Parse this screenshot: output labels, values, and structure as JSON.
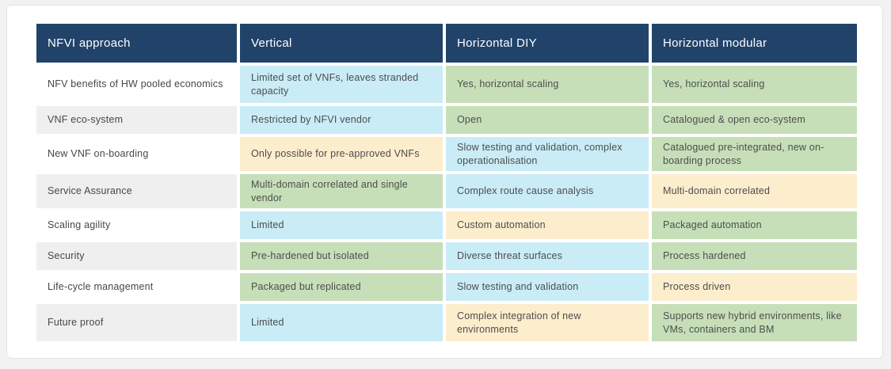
{
  "colors": {
    "page_bg": "#f2f2f2",
    "card_bg": "#ffffff",
    "card_border": "#e3e3e3",
    "header_bg": "#21436a",
    "header_text": "#fdfeff",
    "cell_text": "#4d4d4d",
    "palette": {
      "blue": "#c9ecf7",
      "green": "#c6dfb8",
      "orange": "#fcedcd",
      "gray": "#efefef",
      "white": "#ffffff",
      "navy": "#21436a"
    }
  },
  "table": {
    "headers": [
      "NFVI approach",
      "Vertical",
      "Horizontal DIY",
      "Horizontal modular"
    ],
    "rows": [
      {
        "label": "NFV benefits of HW pooled economics",
        "label_color": "white",
        "cells": [
          {
            "text": "Limited set of VNFs, leaves stranded capacity",
            "color": "blue"
          },
          {
            "text": "Yes, horizontal scaling",
            "color": "green"
          },
          {
            "text": "Yes, horizontal scaling",
            "color": "green"
          }
        ]
      },
      {
        "label": "VNF eco-system",
        "label_color": "gray",
        "cells": [
          {
            "text": "Restricted by NFVI vendor",
            "color": "blue"
          },
          {
            "text": "Open",
            "color": "green"
          },
          {
            "text": "Catalogued & open eco-system",
            "color": "green"
          }
        ]
      },
      {
        "label": "New VNF on-boarding",
        "label_color": "white",
        "cells": [
          {
            "text": "Only possible for pre-approved VNFs",
            "color": "orange"
          },
          {
            "text": "Slow testing and validation, complex operationalisation",
            "color": "blue"
          },
          {
            "text": "Catalogued pre-integrated, new on-boarding process",
            "color": "green"
          }
        ]
      },
      {
        "label": "Service Assurance",
        "label_color": "gray",
        "cells": [
          {
            "text": "Multi-domain correlated and single vendor",
            "color": "green"
          },
          {
            "text": "Complex route cause analysis",
            "color": "blue"
          },
          {
            "text": "Multi-domain correlated",
            "color": "orange"
          }
        ]
      },
      {
        "label": "Scaling agility",
        "label_color": "white",
        "cells": [
          {
            "text": "Limited",
            "color": "blue"
          },
          {
            "text": "Custom automation",
            "color": "orange"
          },
          {
            "text": "Packaged automation",
            "color": "green"
          }
        ]
      },
      {
        "label": "Security",
        "label_color": "gray",
        "cells": [
          {
            "text": "Pre-hardened but isolated",
            "color": "green"
          },
          {
            "text": "Diverse threat surfaces",
            "color": "blue"
          },
          {
            "text": "Process hardened",
            "color": "green"
          }
        ]
      },
      {
        "label": "Life-cycle management",
        "label_color": "white",
        "cells": [
          {
            "text": "Packaged but replicated",
            "color": "green"
          },
          {
            "text": "Slow testing and validation",
            "color": "blue"
          },
          {
            "text": "Process driven",
            "color": "orange"
          }
        ]
      },
      {
        "label": "Future proof",
        "label_color": "gray",
        "cells": [
          {
            "text": "Limited",
            "color": "blue"
          },
          {
            "text": "Complex integration of new environments",
            "color": "orange"
          },
          {
            "text": "Supports new hybrid environments, like VMs, containers and BM",
            "color": "green"
          }
        ]
      }
    ]
  }
}
